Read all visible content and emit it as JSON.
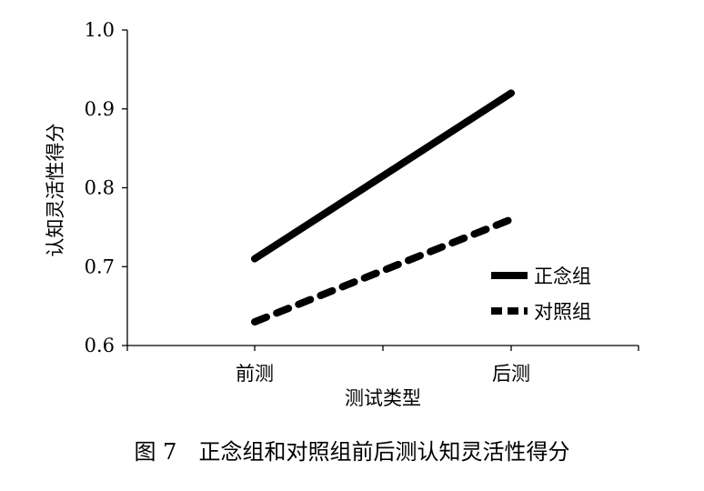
{
  "chart_data": {
    "type": "line",
    "categories": [
      "前测",
      "后测"
    ],
    "series": [
      {
        "name": "正念组",
        "values": [
          0.71,
          0.92
        ],
        "line_style": "solid",
        "color": "#000000"
      },
      {
        "name": "对照组",
        "values": [
          0.63,
          0.76
        ],
        "line_style": "dashed",
        "color": "#000000"
      }
    ],
    "xlabel": "测试类型",
    "ylabel": "认知灵活性得分",
    "ylim": [
      0.6,
      1.0
    ],
    "yticks": [
      "0.6",
      "0.7",
      "0.8",
      "0.9",
      "1.0"
    ],
    "grid": false,
    "legend_position": "bottom-right"
  },
  "caption": "图 7　正念组和对照组前后测认知灵活性得分"
}
